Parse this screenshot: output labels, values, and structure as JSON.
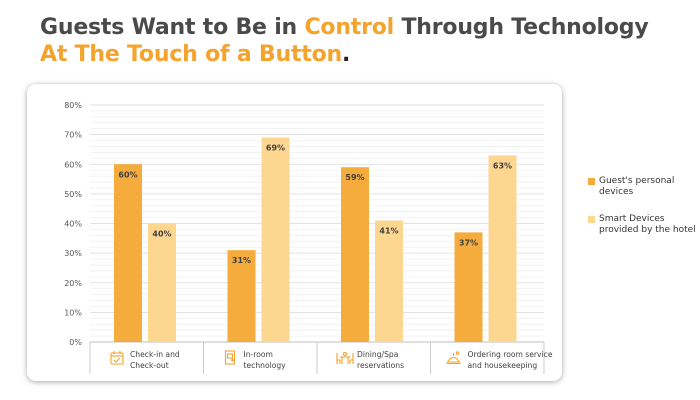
{
  "headline": {
    "line1_pre": "Guests Want to Be in ",
    "line1_highlight": "Control",
    "line1_post": " Through Technology",
    "line2_highlight": "At The Touch of a Button",
    "line2_end": "."
  },
  "colors": {
    "headline_text": "#4a4a4a",
    "highlight": "#f4a32c",
    "series_personal": "#f6ac3c",
    "series_hotel": "#fdd690",
    "gridline": "#d9d9d9",
    "icon": "#f4a32c"
  },
  "chart_data": {
    "type": "bar",
    "categories": [
      {
        "lines": [
          "Check-in and",
          "Check-out"
        ],
        "icon": "calendar-icon"
      },
      {
        "lines": [
          "In-room",
          "technology"
        ],
        "icon": "door-icon"
      },
      {
        "lines": [
          "Dining/Spa",
          "reservations"
        ],
        "icon": "dining-table-icon"
      },
      {
        "lines": [
          "Ordering room service",
          "and housekeeping"
        ],
        "icon": "room-service-icon"
      }
    ],
    "series": [
      {
        "name": "Guest's personal devices",
        "values": [
          60,
          31,
          59,
          37
        ],
        "color": "#f6ac3c"
      },
      {
        "name": "Smart Devices provided by the hotel",
        "values": [
          40,
          69,
          41,
          63
        ],
        "color": "#fdd690"
      }
    ],
    "data_labels": [
      [
        "60%",
        "31%",
        "59%",
        "37%"
      ],
      [
        "40%",
        "69%",
        "41%",
        "63%"
      ]
    ],
    "yticks": [
      "0%",
      "10%",
      "20%",
      "30%",
      "40%",
      "50%",
      "60%",
      "70%",
      "80%"
    ],
    "ylim": [
      0,
      80
    ],
    "minor_grid_step": 2,
    "grid": true,
    "legend_position": "right"
  }
}
